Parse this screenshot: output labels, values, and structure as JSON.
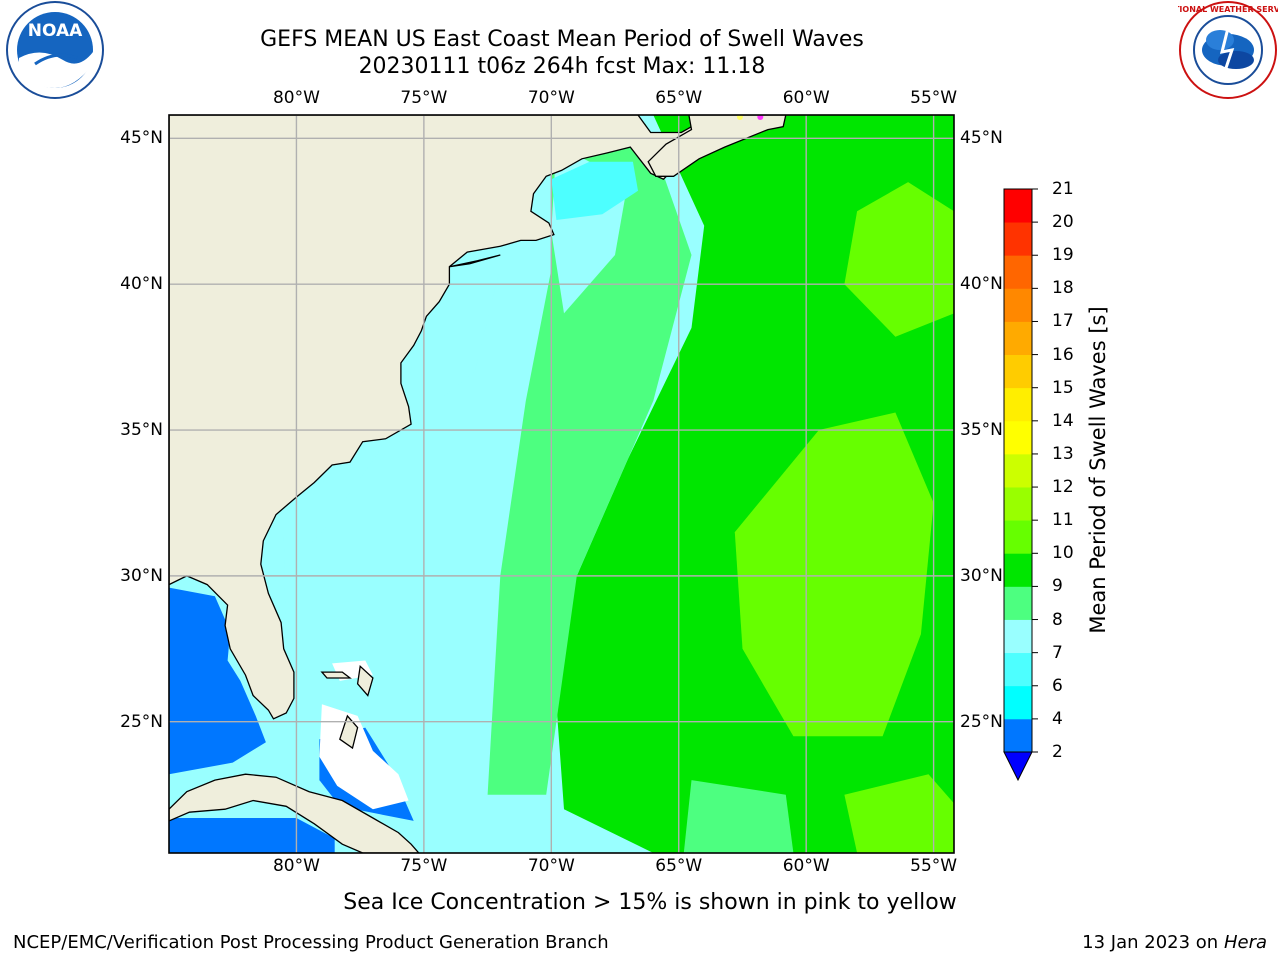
{
  "header": {
    "title_line1": "GEFS MEAN US East Coast Mean Period of Swell Waves",
    "title_line2": "20230111 t06z 264h fcst   Max: 11.18"
  },
  "logos": {
    "left_text": "NOAA",
    "right_text": "NATIONAL WEATHER SERVICE"
  },
  "map": {
    "lon_labels": [
      "80°W",
      "75°W",
      "70°W",
      "65°W",
      "60°W",
      "55°W"
    ],
    "lat_labels": [
      "45°N",
      "40°N",
      "35°N",
      "30°N",
      "25°N"
    ],
    "lon_range": [
      -85,
      -54.2
    ],
    "lat_range": [
      20.5,
      45.8
    ],
    "colors": {
      "land": "#efeedc",
      "grid": "#b0b0b0",
      "coast": "#000000",
      "ocean_base": "#99ffff"
    },
    "regions": [
      {
        "name": "east-open-ocean",
        "level": 9,
        "points": [
          [
            -66,
            45.8
          ],
          [
            -54.2,
            45.8
          ],
          [
            -54.2,
            20.5
          ],
          [
            -66,
            20.5
          ],
          [
            -69.5,
            22
          ],
          [
            -70,
            28
          ],
          [
            -67,
            34
          ],
          [
            -64.5,
            38.5
          ],
          [
            -64,
            42
          ]
        ]
      },
      {
        "name": "central-light-band",
        "level": 8,
        "points": [
          [
            -70,
            45.3
          ],
          [
            -66.3,
            45.5
          ],
          [
            -64.5,
            41
          ],
          [
            -66,
            36
          ],
          [
            -69,
            30
          ],
          [
            -70.2,
            22.5
          ],
          [
            -72.5,
            22.5
          ],
          [
            -72,
            30
          ],
          [
            -71,
            36
          ],
          [
            -70,
            40.5
          ]
        ]
      },
      {
        "name": "coastal-band-north",
        "level": 7,
        "points": [
          [
            -70,
            41.8
          ],
          [
            -69.8,
            44.8
          ],
          [
            -67,
            43.5
          ],
          [
            -67.5,
            41
          ],
          [
            -69.5,
            39
          ]
        ]
      },
      {
        "name": "gulf-of-maine",
        "level": 6,
        "points": [
          [
            -70,
            43.6
          ],
          [
            -68.5,
            44.2
          ],
          [
            -66.8,
            44.2
          ],
          [
            -66.6,
            43.2
          ],
          [
            -68,
            42.4
          ],
          [
            -69.8,
            42.2
          ]
        ]
      },
      {
        "name": "coastal-band-se",
        "level": 7,
        "points": [
          [
            -75,
            40.3
          ],
          [
            -72,
            40.6
          ],
          [
            -73,
            37
          ],
          [
            -75.6,
            35.2
          ],
          [
            -78.6,
            33.6
          ],
          [
            -80.5,
            31.5
          ],
          [
            -80.4,
            27
          ],
          [
            -77,
            26
          ],
          [
            -77,
            22
          ],
          [
            -78.5,
            22
          ],
          [
            -80.5,
            25
          ],
          [
            -81.2,
            29.5
          ],
          [
            -79,
            31.5
          ],
          [
            -76.8,
            34.2
          ],
          [
            -75.6,
            36.5
          ]
        ]
      },
      {
        "name": "green-core-sw",
        "level": 10,
        "points": [
          [
            -59.5,
            35
          ],
          [
            -56.5,
            35.6
          ],
          [
            -55,
            32.5
          ],
          [
            -55.5,
            28
          ],
          [
            -57,
            24.5
          ],
          [
            -60.5,
            24.5
          ],
          [
            -62.5,
            27.5
          ],
          [
            -62.8,
            31.5
          ]
        ]
      },
      {
        "name": "green-core-ne",
        "level": 10,
        "points": [
          [
            -56.5,
            38.2
          ],
          [
            -54.2,
            39
          ],
          [
            -54.2,
            42.5
          ],
          [
            -56,
            43.5
          ],
          [
            -58,
            42.5
          ],
          [
            -58.5,
            40
          ]
        ]
      },
      {
        "name": "green-patch-se",
        "level": 10,
        "points": [
          [
            -58.5,
            22.5
          ],
          [
            -55.2,
            23.2
          ],
          [
            -54.2,
            22.2
          ],
          [
            -54.2,
            20.5
          ],
          [
            -58,
            20.5
          ]
        ]
      },
      {
        "name": "light-patch-mid-south",
        "level": 8,
        "points": [
          [
            -64.5,
            23
          ],
          [
            -60.8,
            22.5
          ],
          [
            -60.5,
            20.5
          ],
          [
            -64.8,
            20.5
          ]
        ]
      },
      {
        "name": "gulf-of-mexico-deep",
        "level": 3,
        "points": [
          [
            -85,
            29.6
          ],
          [
            -83.2,
            29.3
          ],
          [
            -82.6,
            28.1
          ],
          [
            -82.7,
            27.1
          ],
          [
            -82.2,
            26.4
          ],
          [
            -81.6,
            25.2
          ],
          [
            -81.2,
            24.3
          ],
          [
            -82.5,
            23.6
          ],
          [
            -85,
            23.2
          ]
        ]
      },
      {
        "name": "gulf-of-mexico-south",
        "level": 3,
        "points": [
          [
            -85,
            21.7
          ],
          [
            -80,
            21.7
          ],
          [
            -78.5,
            21
          ],
          [
            -78.5,
            20.5
          ],
          [
            -85,
            20.5
          ]
        ]
      },
      {
        "name": "bahamas-shallow",
        "level": 3,
        "points": [
          [
            -79.1,
            24.4
          ],
          [
            -77.3,
            24.8
          ],
          [
            -76.3,
            23.4
          ],
          [
            -75.4,
            21.6
          ],
          [
            -78.3,
            22.1
          ],
          [
            -79.1,
            23
          ]
        ]
      },
      {
        "name": "nb-small-dark",
        "level": 3,
        "points": [
          [
            -67.8,
            45.2
          ],
          [
            -66.6,
            45.4
          ],
          [
            -67.5,
            44.7
          ]
        ]
      }
    ],
    "land_polygons": [
      {
        "name": "north-america",
        "points": [
          [
            -85,
            45.8
          ],
          [
            -66.6,
            45.8
          ],
          [
            -66.1,
            45.2
          ],
          [
            -64.9,
            45.2
          ],
          [
            -64.1,
            45.6
          ],
          [
            -64.9,
            44.2
          ],
          [
            -65.6,
            43.6
          ],
          [
            -66.1,
            43.8
          ],
          [
            -66.9,
            44.7
          ],
          [
            -67.8,
            44.5
          ],
          [
            -68.8,
            44.3
          ],
          [
            -69.6,
            43.9
          ],
          [
            -70.2,
            43.7
          ],
          [
            -70.7,
            43.1
          ],
          [
            -70.8,
            42.5
          ],
          [
            -70.1,
            42.1
          ],
          [
            -69.9,
            41.7
          ],
          [
            -70.6,
            41.5
          ],
          [
            -71.2,
            41.5
          ],
          [
            -72.0,
            41.3
          ],
          [
            -73.3,
            41.1
          ],
          [
            -74.0,
            40.6
          ],
          [
            -74.0,
            40.0
          ],
          [
            -74.4,
            39.4
          ],
          [
            -74.9,
            38.9
          ],
          [
            -75.1,
            38.4
          ],
          [
            -75.4,
            37.9
          ],
          [
            -75.9,
            37.3
          ],
          [
            -75.9,
            36.6
          ],
          [
            -75.6,
            35.8
          ],
          [
            -75.5,
            35.2
          ],
          [
            -76.5,
            34.7
          ],
          [
            -77.4,
            34.6
          ],
          [
            -77.9,
            33.9
          ],
          [
            -78.6,
            33.8
          ],
          [
            -79.3,
            33.2
          ],
          [
            -80.0,
            32.7
          ],
          [
            -80.8,
            32.1
          ],
          [
            -81.3,
            31.2
          ],
          [
            -81.4,
            30.4
          ],
          [
            -81.1,
            29.4
          ],
          [
            -80.6,
            28.4
          ],
          [
            -80.5,
            27.5
          ],
          [
            -80.1,
            26.7
          ],
          [
            -80.1,
            25.8
          ],
          [
            -80.4,
            25.3
          ],
          [
            -80.9,
            25.1
          ],
          [
            -81.1,
            25.4
          ],
          [
            -81.7,
            25.9
          ],
          [
            -82.0,
            26.6
          ],
          [
            -82.6,
            27.5
          ],
          [
            -82.8,
            28.3
          ],
          [
            -82.7,
            29.0
          ],
          [
            -83.5,
            29.7
          ],
          [
            -84.3,
            30.0
          ],
          [
            -85,
            29.7
          ]
        ]
      },
      {
        "name": "nova-scotia",
        "points": [
          [
            -64.6,
            45.8
          ],
          [
            -60.8,
            45.8
          ],
          [
            -60.9,
            45.4
          ],
          [
            -61.5,
            45.3
          ],
          [
            -63.2,
            44.7
          ],
          [
            -64.2,
            44.3
          ],
          [
            -65.2,
            43.7
          ],
          [
            -65.9,
            43.7
          ],
          [
            -66.2,
            44.2
          ],
          [
            -65.5,
            44.8
          ],
          [
            -64.5,
            45.3
          ]
        ]
      },
      {
        "name": "cuba",
        "points": [
          [
            -85,
            22.0
          ],
          [
            -84.3,
            22.6
          ],
          [
            -83.2,
            23.0
          ],
          [
            -82.0,
            23.2
          ],
          [
            -80.8,
            23.1
          ],
          [
            -79.5,
            22.6
          ],
          [
            -78.2,
            22.3
          ],
          [
            -77.0,
            21.7
          ],
          [
            -76.0,
            21.2
          ],
          [
            -75.5,
            20.8
          ],
          [
            -75.2,
            20.5
          ],
          [
            -77.4,
            20.5
          ],
          [
            -78.2,
            20.8
          ],
          [
            -79.3,
            21.5
          ],
          [
            -80.4,
            22.1
          ],
          [
            -81.7,
            22.3
          ],
          [
            -82.8,
            22.0
          ],
          [
            -84.2,
            21.9
          ],
          [
            -85,
            21.6
          ]
        ]
      },
      {
        "name": "andros-island",
        "points": [
          [
            -78.0,
            25.2
          ],
          [
            -77.6,
            24.8
          ],
          [
            -77.8,
            24.1
          ],
          [
            -78.3,
            24.4
          ]
        ]
      },
      {
        "name": "grand-bahama",
        "points": [
          [
            -79.0,
            26.7
          ],
          [
            -78.2,
            26.7
          ],
          [
            -77.9,
            26.5
          ],
          [
            -78.8,
            26.5
          ]
        ]
      },
      {
        "name": "abaco",
        "points": [
          [
            -77.5,
            26.9
          ],
          [
            -77.0,
            26.5
          ],
          [
            -77.2,
            25.9
          ],
          [
            -77.6,
            26.3
          ]
        ]
      },
      {
        "name": "long-island",
        "points": [
          [
            -74.0,
            40.6
          ],
          [
            -73.2,
            40.7
          ],
          [
            -72.0,
            41.0
          ],
          [
            -72.9,
            40.8
          ]
        ]
      }
    ],
    "bahamas_shoals": [
      {
        "name": "great-bahama-bank",
        "points": [
          [
            -79.0,
            25.6
          ],
          [
            -77.6,
            25.2
          ],
          [
            -77.0,
            24.0
          ],
          [
            -76.0,
            23.2
          ],
          [
            -75.6,
            22.3
          ],
          [
            -77.0,
            22.0
          ],
          [
            -78.4,
            22.8
          ],
          [
            -79.1,
            23.8
          ]
        ]
      },
      {
        "name": "little-bahama-bank",
        "points": [
          [
            -78.6,
            27.0
          ],
          [
            -77.3,
            27.1
          ],
          [
            -77.0,
            26.6
          ],
          [
            -78.3,
            26.4
          ]
        ]
      }
    ],
    "sea_ice_marks": [
      {
        "name": "sea-ice-mark",
        "lon": -61.8,
        "lat": 45.8,
        "color": "#ff33ff"
      },
      {
        "name": "sea-ice-mark",
        "lon": -62.6,
        "lat": 45.8,
        "color": "#ffff66"
      }
    ]
  },
  "colorbar": {
    "title": "Mean Period of Swell Waves [s]",
    "levels": [
      2,
      4,
      6,
      7,
      8,
      9,
      10,
      11,
      12,
      13,
      14,
      15,
      16,
      17,
      18,
      19,
      20,
      21
    ],
    "tick_labels": [
      "21",
      "20",
      "19",
      "18",
      "17",
      "16",
      "15",
      "14",
      "13",
      "12",
      "11",
      "10",
      "9",
      "8",
      "7",
      "6",
      "4",
      "2"
    ],
    "colors": [
      "#0077ff",
      "#00ffff",
      "#4dffff",
      "#99ffff",
      "#4dff80",
      "#00e600",
      "#66ff00",
      "#99ff00",
      "#ccff00",
      "#ffff00",
      "#ffee00",
      "#ffcc00",
      "#ffaa00",
      "#ff8800",
      "#ff6600",
      "#ff3300",
      "#ff0000"
    ],
    "under_color": "#0000ff"
  },
  "footer": {
    "note": "Sea Ice Concentration > 15% is shown in pink to yellow",
    "left": "NCEP/EMC/Verification Post Processing Product Generation Branch",
    "date": "13 Jan 2023 on",
    "host": "Hera"
  }
}
